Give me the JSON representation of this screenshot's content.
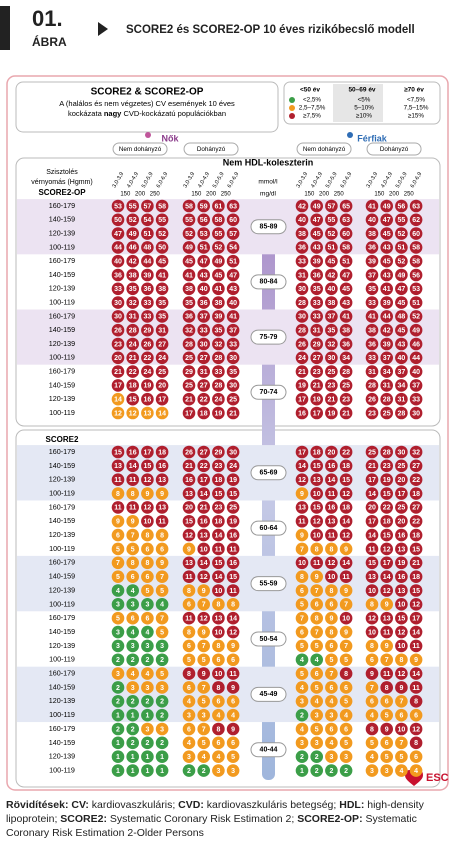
{
  "header": {
    "number": "01.",
    "label": "ÁBRA",
    "title": "SCORE2 és SCORE2-OP 10 éves rizikóbecslő modell"
  },
  "chart_data": {
    "type": "risk-table",
    "title": "SCORE2 & SCORE2-OP",
    "subtitle": [
      "A (halálos és nem végzetes) CV események 10 éves",
      "kockázata"
    ],
    "subtitle_bold": "nagy",
    "subtitle_end": "CVD-kockázatú populációkban",
    "legend": {
      "colors": [
        "#3b9e48",
        "#f29a1f",
        "#b01f2e"
      ],
      "columns": [
        {
          "label": "<50 év",
          "items": [
            "<2,5%",
            "2,5–7,5%",
            "≥7,5%"
          ],
          "cuts": [
            2.5,
            7.5
          ]
        },
        {
          "label": "50–69 év",
          "items": [
            "<5%",
            "5–10%",
            "≥10%"
          ],
          "cuts": [
            5,
            10
          ]
        },
        {
          "label": "≥70 év",
          "items": [
            "<7,5%",
            "7,5–15%",
            "≥15%"
          ],
          "cuts": [
            7.5,
            15
          ]
        }
      ]
    },
    "sexes": [
      {
        "label": "Nők",
        "panels": [
          "Nem dohányzó",
          "Dohányzó"
        ]
      },
      {
        "label": "Férfiak",
        "panels": [
          "Nem dohányzó",
          "Dohányzó"
        ]
      }
    ],
    "x_label": "Nem HDL-koleszterin",
    "cholesterol_bins": [
      "3,0-3,9",
      "4,0-4,9",
      "5,0-5,9",
      "6,0-6,9"
    ],
    "mgdl_ticks": [
      150,
      200,
      250
    ],
    "unit_mmol": "mmol/l",
    "unit_mgdl": "mg/dl",
    "bp_header": [
      "Szisztolés",
      "vérnyomás (Hgmm)"
    ],
    "bp_rows": [
      "160-179",
      "140-159",
      "120-139",
      "100-119"
    ],
    "sections": [
      {
        "name": "SCORE2-OP",
        "groups": [
          {
            "age": "85-89",
            "legend_column": 2,
            "rows": [
              [
                53,
                55,
                57,
                58,
                58,
                59,
                61,
                63,
                42,
                49,
                57,
                65,
                41,
                49,
                56,
                63
              ],
              [
                50,
                52,
                54,
                55,
                55,
                56,
                58,
                60,
                40,
                47,
                55,
                63,
                40,
                47,
                55,
                62
              ],
              [
                47,
                49,
                51,
                52,
                52,
                53,
                55,
                57,
                38,
                45,
                52,
                60,
                38,
                45,
                52,
                60
              ],
              [
                44,
                46,
                48,
                50,
                49,
                51,
                52,
                54,
                36,
                43,
                51,
                58,
                36,
                43,
                51,
                58
              ]
            ]
          },
          {
            "age": "80-84",
            "legend_column": 2,
            "rows": [
              [
                40,
                42,
                44,
                45,
                45,
                47,
                49,
                51,
                33,
                39,
                45,
                51,
                39,
                45,
                52,
                58
              ],
              [
                36,
                38,
                39,
                41,
                41,
                43,
                45,
                47,
                31,
                36,
                42,
                47,
                37,
                43,
                49,
                56
              ],
              [
                33,
                35,
                36,
                38,
                38,
                40,
                41,
                43,
                30,
                35,
                40,
                45,
                35,
                41,
                47,
                53
              ],
              [
                30,
                32,
                33,
                35,
                35,
                36,
                38,
                40,
                28,
                33,
                38,
                43,
                33,
                39,
                45,
                51
              ]
            ]
          },
          {
            "age": "75-79",
            "legend_column": 2,
            "rows": [
              [
                30,
                31,
                33,
                35,
                36,
                37,
                39,
                41,
                30,
                33,
                37,
                41,
                41,
                44,
                48,
                52
              ],
              [
                26,
                28,
                29,
                31,
                32,
                33,
                35,
                37,
                28,
                31,
                35,
                38,
                38,
                42,
                45,
                49
              ],
              [
                23,
                24,
                26,
                27,
                28,
                30,
                32,
                33,
                26,
                29,
                32,
                36,
                36,
                39,
                43,
                46
              ],
              [
                20,
                21,
                22,
                24,
                25,
                27,
                28,
                30,
                24,
                27,
                30,
                34,
                33,
                37,
                40,
                44
              ]
            ]
          },
          {
            "age": "70-74",
            "legend_column": 2,
            "rows": [
              [
                21,
                22,
                24,
                25,
                29,
                31,
                33,
                35,
                21,
                23,
                25,
                28,
                31,
                34,
                37,
                40
              ],
              [
                17,
                18,
                19,
                20,
                25,
                27,
                28,
                30,
                19,
                21,
                23,
                25,
                28,
                31,
                34,
                37
              ],
              [
                14,
                15,
                16,
                17,
                21,
                22,
                24,
                25,
                17,
                19,
                21,
                23,
                26,
                28,
                31,
                33
              ],
              [
                12,
                12,
                13,
                14,
                17,
                18,
                19,
                21,
                16,
                17,
                19,
                21,
                23,
                25,
                28,
                30
              ]
            ]
          }
        ]
      },
      {
        "name": "SCORE2",
        "groups": [
          {
            "age": "65-69",
            "legend_column": 1,
            "rows": [
              [
                15,
                16,
                17,
                18,
                26,
                27,
                29,
                30,
                17,
                18,
                20,
                22,
                25,
                28,
                30,
                32
              ],
              [
                13,
                14,
                15,
                16,
                21,
                22,
                23,
                24,
                14,
                15,
                16,
                18,
                21,
                23,
                25,
                27
              ],
              [
                11,
                11,
                12,
                13,
                16,
                17,
                18,
                19,
                12,
                13,
                14,
                15,
                17,
                19,
                20,
                22
              ],
              [
                8,
                8,
                9,
                9,
                13,
                14,
                15,
                15,
                9,
                10,
                11,
                12,
                14,
                15,
                17,
                18
              ]
            ]
          },
          {
            "age": "60-64",
            "legend_column": 1,
            "rows": [
              [
                11,
                11,
                12,
                13,
                20,
                21,
                23,
                25,
                13,
                15,
                16,
                18,
                20,
                22,
                25,
                27
              ],
              [
                9,
                9,
                10,
                11,
                15,
                16,
                18,
                19,
                11,
                12,
                13,
                14,
                17,
                18,
                20,
                22
              ],
              [
                6,
                7,
                8,
                8,
                12,
                13,
                14,
                16,
                9,
                10,
                11,
                12,
                14,
                15,
                16,
                18
              ],
              [
                5,
                5,
                6,
                6,
                9,
                10,
                11,
                11,
                7,
                8,
                8,
                9,
                11,
                12,
                13,
                15
              ]
            ]
          },
          {
            "age": "55-59",
            "legend_column": 1,
            "rows": [
              [
                7,
                8,
                8,
                9,
                13,
                14,
                15,
                16,
                10,
                11,
                12,
                14,
                15,
                17,
                19,
                21
              ],
              [
                5,
                6,
                6,
                7,
                11,
                12,
                14,
                15,
                8,
                9,
                10,
                11,
                13,
                14,
                16,
                18
              ],
              [
                4,
                4,
                5,
                5,
                8,
                9,
                10,
                11,
                6,
                7,
                8,
                9,
                10,
                12,
                13,
                15
              ],
              [
                3,
                3,
                3,
                4,
                6,
                7,
                8,
                8,
                5,
                6,
                6,
                7,
                8,
                9,
                10,
                12
              ]
            ]
          },
          {
            "age": "50-54",
            "legend_column": 1,
            "rows": [
              [
                5,
                6,
                6,
                7,
                11,
                12,
                13,
                14,
                7,
                8,
                9,
                10,
                12,
                13,
                15,
                17
              ],
              [
                3,
                4,
                4,
                5,
                8,
                9,
                10,
                12,
                6,
                7,
                8,
                9,
                10,
                11,
                12,
                14
              ],
              [
                3,
                3,
                3,
                3,
                6,
                7,
                8,
                9,
                5,
                5,
                6,
                7,
                8,
                9,
                10,
                11
              ],
              [
                2,
                2,
                2,
                2,
                5,
                5,
                6,
                6,
                4,
                4,
                5,
                5,
                6,
                7,
                8,
                9
              ]
            ]
          },
          {
            "age": "45-49",
            "legend_column": 0,
            "rows": [
              [
                3,
                4,
                4,
                5,
                8,
                9,
                10,
                11,
                5,
                6,
                7,
                8,
                9,
                11,
                12,
                14
              ],
              [
                2,
                3,
                3,
                3,
                6,
                7,
                8,
                9,
                4,
                5,
                6,
                6,
                7,
                8,
                9,
                11
              ],
              [
                2,
                2,
                2,
                2,
                4,
                5,
                6,
                6,
                3,
                4,
                4,
                5,
                6,
                6,
                7,
                8
              ],
              [
                1,
                1,
                1,
                2,
                3,
                3,
                4,
                4,
                2,
                3,
                3,
                4,
                4,
                5,
                6,
                6
              ]
            ]
          },
          {
            "age": "40-44",
            "legend_column": 0,
            "rows": [
              [
                2,
                2,
                3,
                3,
                6,
                7,
                8,
                9,
                4,
                5,
                6,
                6,
                8,
                9,
                10,
                12
              ],
              [
                1,
                2,
                2,
                2,
                4,
                5,
                6,
                6,
                3,
                3,
                4,
                5,
                5,
                6,
                7,
                8
              ],
              [
                1,
                1,
                1,
                1,
                3,
                4,
                4,
                5,
                2,
                2,
                3,
                3,
                4,
                5,
                5,
                6
              ],
              [
                1,
                1,
                1,
                1,
                2,
                2,
                3,
                3,
                1,
                2,
                2,
                2,
                3,
                3,
                4,
                4
              ]
            ]
          }
        ]
      }
    ]
  },
  "logo": "ESC",
  "footnote": [
    {
      "text": "Rövidítések:",
      "bold": true
    },
    {
      "text": " "
    },
    {
      "text": "CV:",
      "bold": true
    },
    {
      "text": " kardiovaszkuláris; "
    },
    {
      "text": "CVD:",
      "bold": true
    },
    {
      "text": " kardiovaszkuláris betegség; "
    },
    {
      "text": "HDL:",
      "bold": true
    },
    {
      "text": " high-density lipoprotein; "
    },
    {
      "text": "SCORE2:",
      "bold": true
    },
    {
      "text": " Systematic Coronary Risk Estimation 2; "
    },
    {
      "text": "SCORE2-OP:",
      "bold": true
    },
    {
      "text": " Systematic Coronary Risk Estimation 2-Older Persons"
    }
  ]
}
